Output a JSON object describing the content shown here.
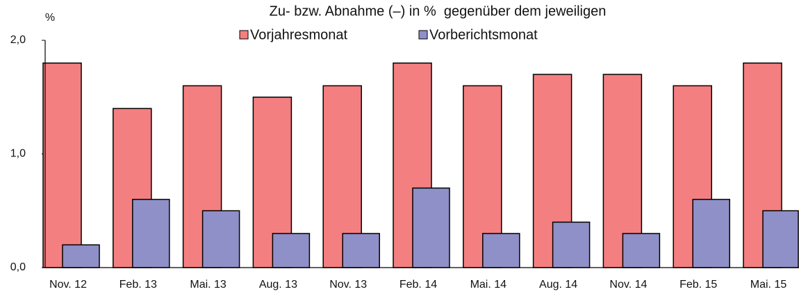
{
  "chart_data": {
    "type": "bar",
    "title": "Zu- bzw. Abnahme (–) in %  gegenüber dem jeweiligen",
    "y_label": "%",
    "categories": [
      "Nov. 12",
      "Feb. 13",
      "Mai. 13",
      "Aug. 13",
      "Nov. 13",
      "Feb. 14",
      "Mai. 14",
      "Aug. 14",
      "Nov. 14",
      "Feb. 15",
      "Mai. 15"
    ],
    "series": [
      {
        "name": "Vorjahresmonat",
        "color": "#f47f80",
        "values": [
          1.8,
          1.4,
          1.6,
          1.5,
          1.6,
          1.8,
          1.6,
          1.7,
          1.7,
          1.6,
          1.8
        ]
      },
      {
        "name": "Vorberichtsmonat",
        "color": "#8f90c8",
        "values": [
          0.2,
          0.6,
          0.5,
          0.3,
          0.3,
          0.7,
          0.3,
          0.4,
          0.3,
          0.6,
          0.5
        ]
      }
    ],
    "ylim": [
      0,
      2
    ],
    "yticks": [
      {
        "value": 0,
        "label": "0,0"
      },
      {
        "value": 1,
        "label": "1,0"
      },
      {
        "value": 2,
        "label": "2,0"
      }
    ],
    "grid": false
  }
}
